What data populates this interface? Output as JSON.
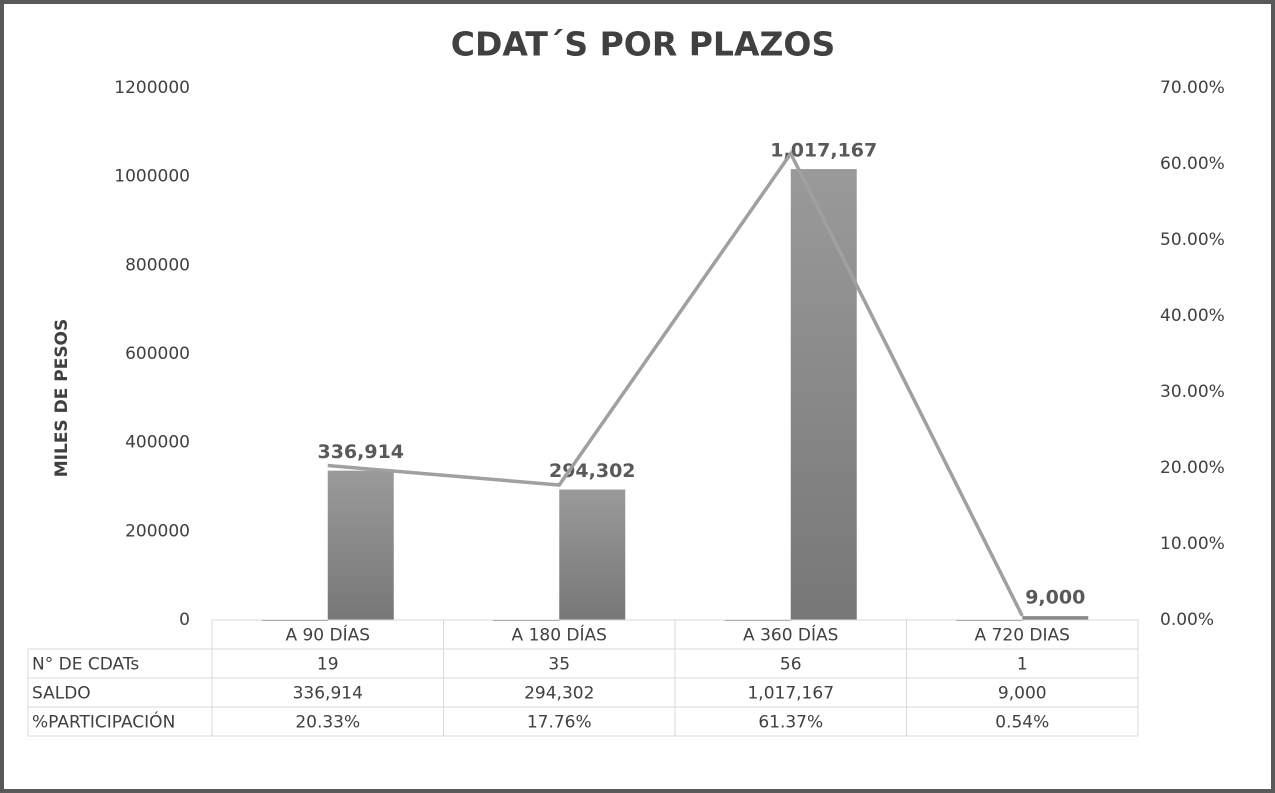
{
  "chart_data": {
    "type": "bar",
    "title": "CDAT´S POR PLAZOS",
    "y_label": "MILES DE PESOS",
    "categories": [
      "A 90  DÍAS",
      "A 180 DÍAS",
      "A 360 DÍAS",
      "A 720 DIAS"
    ],
    "series": [
      {
        "name": "N° DE CDATs",
        "color": "#7f7f7f",
        "values": [
          19,
          35,
          56,
          1
        ]
      },
      {
        "name": "SALDO",
        "color": "#8a8a8a",
        "values": [
          336914,
          294302,
          1017167,
          9000
        ],
        "value_labels": [
          "336,914",
          "294,302",
          "1,017,167",
          "9,000"
        ]
      },
      {
        "name": "%PARTICIPACIÓN",
        "type": "line",
        "axis": "y2",
        "color": "#a0a0a0",
        "values": [
          20.33,
          17.76,
          61.37,
          0.54
        ],
        "value_labels": [
          "20.33%",
          "17.76%",
          "61.37%",
          "0.54%"
        ]
      }
    ],
    "ylim": [
      0,
      1200000
    ],
    "yticks": [
      0,
      200000,
      400000,
      600000,
      800000,
      1000000,
      1200000
    ],
    "y2lim": [
      0,
      70
    ],
    "y2ticks": [
      {
        "value": 0,
        "label": "0.00%"
      },
      {
        "value": 10,
        "label": "10.00%"
      },
      {
        "value": 20,
        "label": "20.00%"
      },
      {
        "value": 30,
        "label": "30.00%"
      },
      {
        "value": 40,
        "label": "40.00%"
      },
      {
        "value": 50,
        "label": "50.00%"
      },
      {
        "value": 60,
        "label": "60.00%"
      },
      {
        "value": 70,
        "label": "70.00%"
      }
    ],
    "data_table": true
  }
}
